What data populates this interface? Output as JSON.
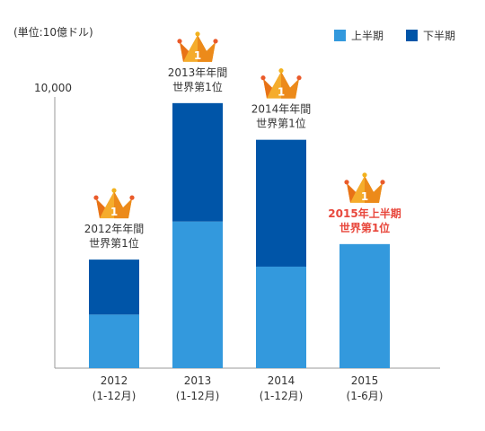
{
  "chart_data": {
    "type": "bar",
    "stacked": true,
    "unit_label": "(単位:10億ドル)",
    "ylim": [
      0,
      10000
    ],
    "y_tick_labels": [
      {
        "value": 10000,
        "label": "10,000"
      }
    ],
    "categories": [
      {
        "year": "2012",
        "period": "(1-12月)"
      },
      {
        "year": "2013",
        "period": "(1-12月)"
      },
      {
        "year": "2014",
        "period": "(1-12月)"
      },
      {
        "year": "2015",
        "period": "(1-6月)"
      }
    ],
    "series": [
      {
        "name": "上半期",
        "color": "#3399dd",
        "values": [
          1900,
          5200,
          3600,
          4400
        ]
      },
      {
        "name": "下半期",
        "color": "#0055a8",
        "values": [
          1950,
          4200,
          4500,
          0
        ]
      }
    ],
    "annotations": [
      {
        "lines": [
          "2012年年間",
          "世界第1位"
        ],
        "color": "#333333",
        "bold": false
      },
      {
        "lines": [
          "2013年年間",
          "世界第1位"
        ],
        "color": "#333333",
        "bold": false
      },
      {
        "lines": [
          "2014年年間",
          "世界第1位"
        ],
        "color": "#333333",
        "bold": false
      },
      {
        "lines": [
          "2015年上半期",
          "世界第1位"
        ],
        "color": "#e8473c",
        "bold": true
      }
    ],
    "crown_rank": "1",
    "legend_position": "top-right",
    "grid": false
  }
}
